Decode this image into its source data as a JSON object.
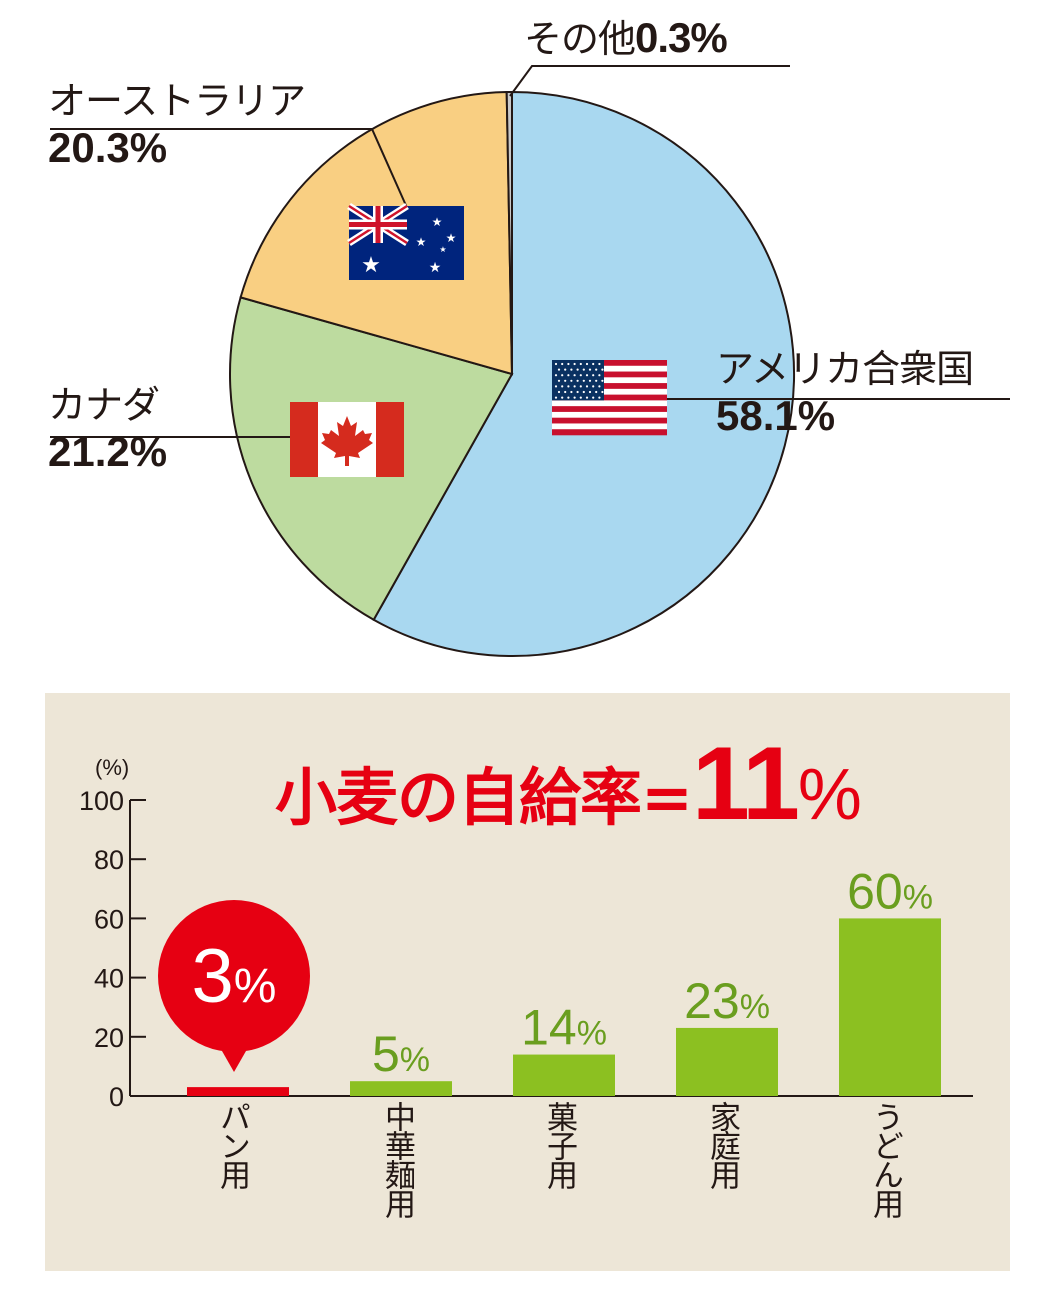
{
  "chart_data": [
    {
      "type": "pie",
      "slices": [
        {
          "label": "アメリカ合衆国",
          "value": 58.1,
          "value_label": "58.1%",
          "color": "#a9d8f0",
          "flag": "usa-flag-icon"
        },
        {
          "label": "カナダ",
          "value": 21.2,
          "value_label": "21.2%",
          "color": "#bddb9f",
          "flag": "canada-flag-icon"
        },
        {
          "label": "オーストラリア",
          "value": 20.3,
          "value_label": "20.3%",
          "color": "#f9cf82",
          "flag": "australia-flag-icon"
        },
        {
          "label": "その他",
          "value": 0.3,
          "value_label": "0.3%",
          "color": "#c9c9c9"
        }
      ]
    },
    {
      "type": "bar",
      "title": {
        "text": "小麦の自給率",
        "equals": "=",
        "number": "11",
        "unit": "%"
      },
      "ylabel": "(%)",
      "ylim": [
        0,
        100
      ],
      "yticks": [
        0,
        20,
        40,
        60,
        80,
        100
      ],
      "categories": [
        "パン用",
        "中華麺用",
        "菓子用",
        "家庭用",
        "うどん用"
      ],
      "values": [
        3,
        5,
        14,
        23,
        60
      ],
      "value_labels": [
        {
          "number": "3",
          "unit": "%"
        },
        {
          "number": "5",
          "unit": "%"
        },
        {
          "number": "14",
          "unit": "%"
        },
        {
          "number": "23",
          "unit": "%"
        },
        {
          "number": "60",
          "unit": "%"
        }
      ],
      "colors": {
        "highlight": "#e60012",
        "bar": "#8cc021",
        "label_green": "#6a9e1f",
        "background": "#ede6d7"
      },
      "highlight_index": 0
    }
  ]
}
